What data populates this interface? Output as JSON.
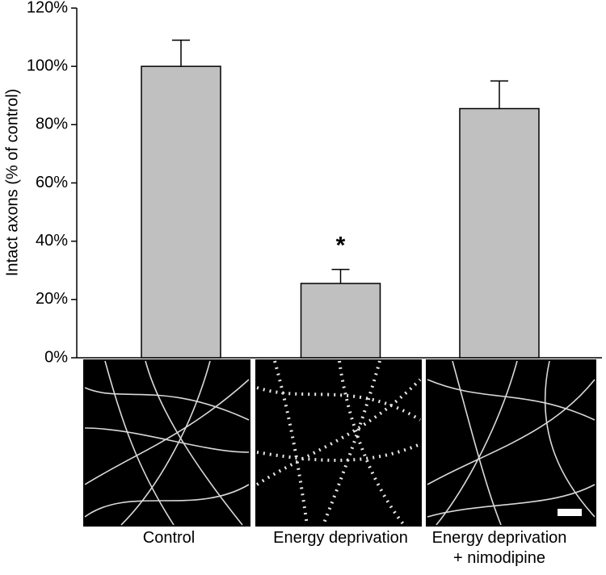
{
  "chart_data": {
    "type": "bar",
    "y_label": "Intact axons (% of control)",
    "categories": [
      "Control",
      "Energy deprivation",
      "Energy deprivation\n+ nimodipine"
    ],
    "values": [
      100,
      25.5,
      85.5
    ],
    "errors": [
      9,
      4.8,
      9.5
    ],
    "value_labels": [
      null,
      "*",
      null
    ],
    "color": "#c0c0c0",
    "ylim": [
      0,
      120
    ],
    "yticks": [
      {
        "value": 0,
        "label": "0%"
      },
      {
        "value": 20,
        "label": "20%"
      },
      {
        "value": 40,
        "label": "40%"
      },
      {
        "value": 60,
        "label": "60%"
      },
      {
        "value": 80,
        "label": "80%"
      },
      {
        "value": 100,
        "label": "100%"
      },
      {
        "value": 120,
        "label": "120%"
      }
    ]
  }
}
